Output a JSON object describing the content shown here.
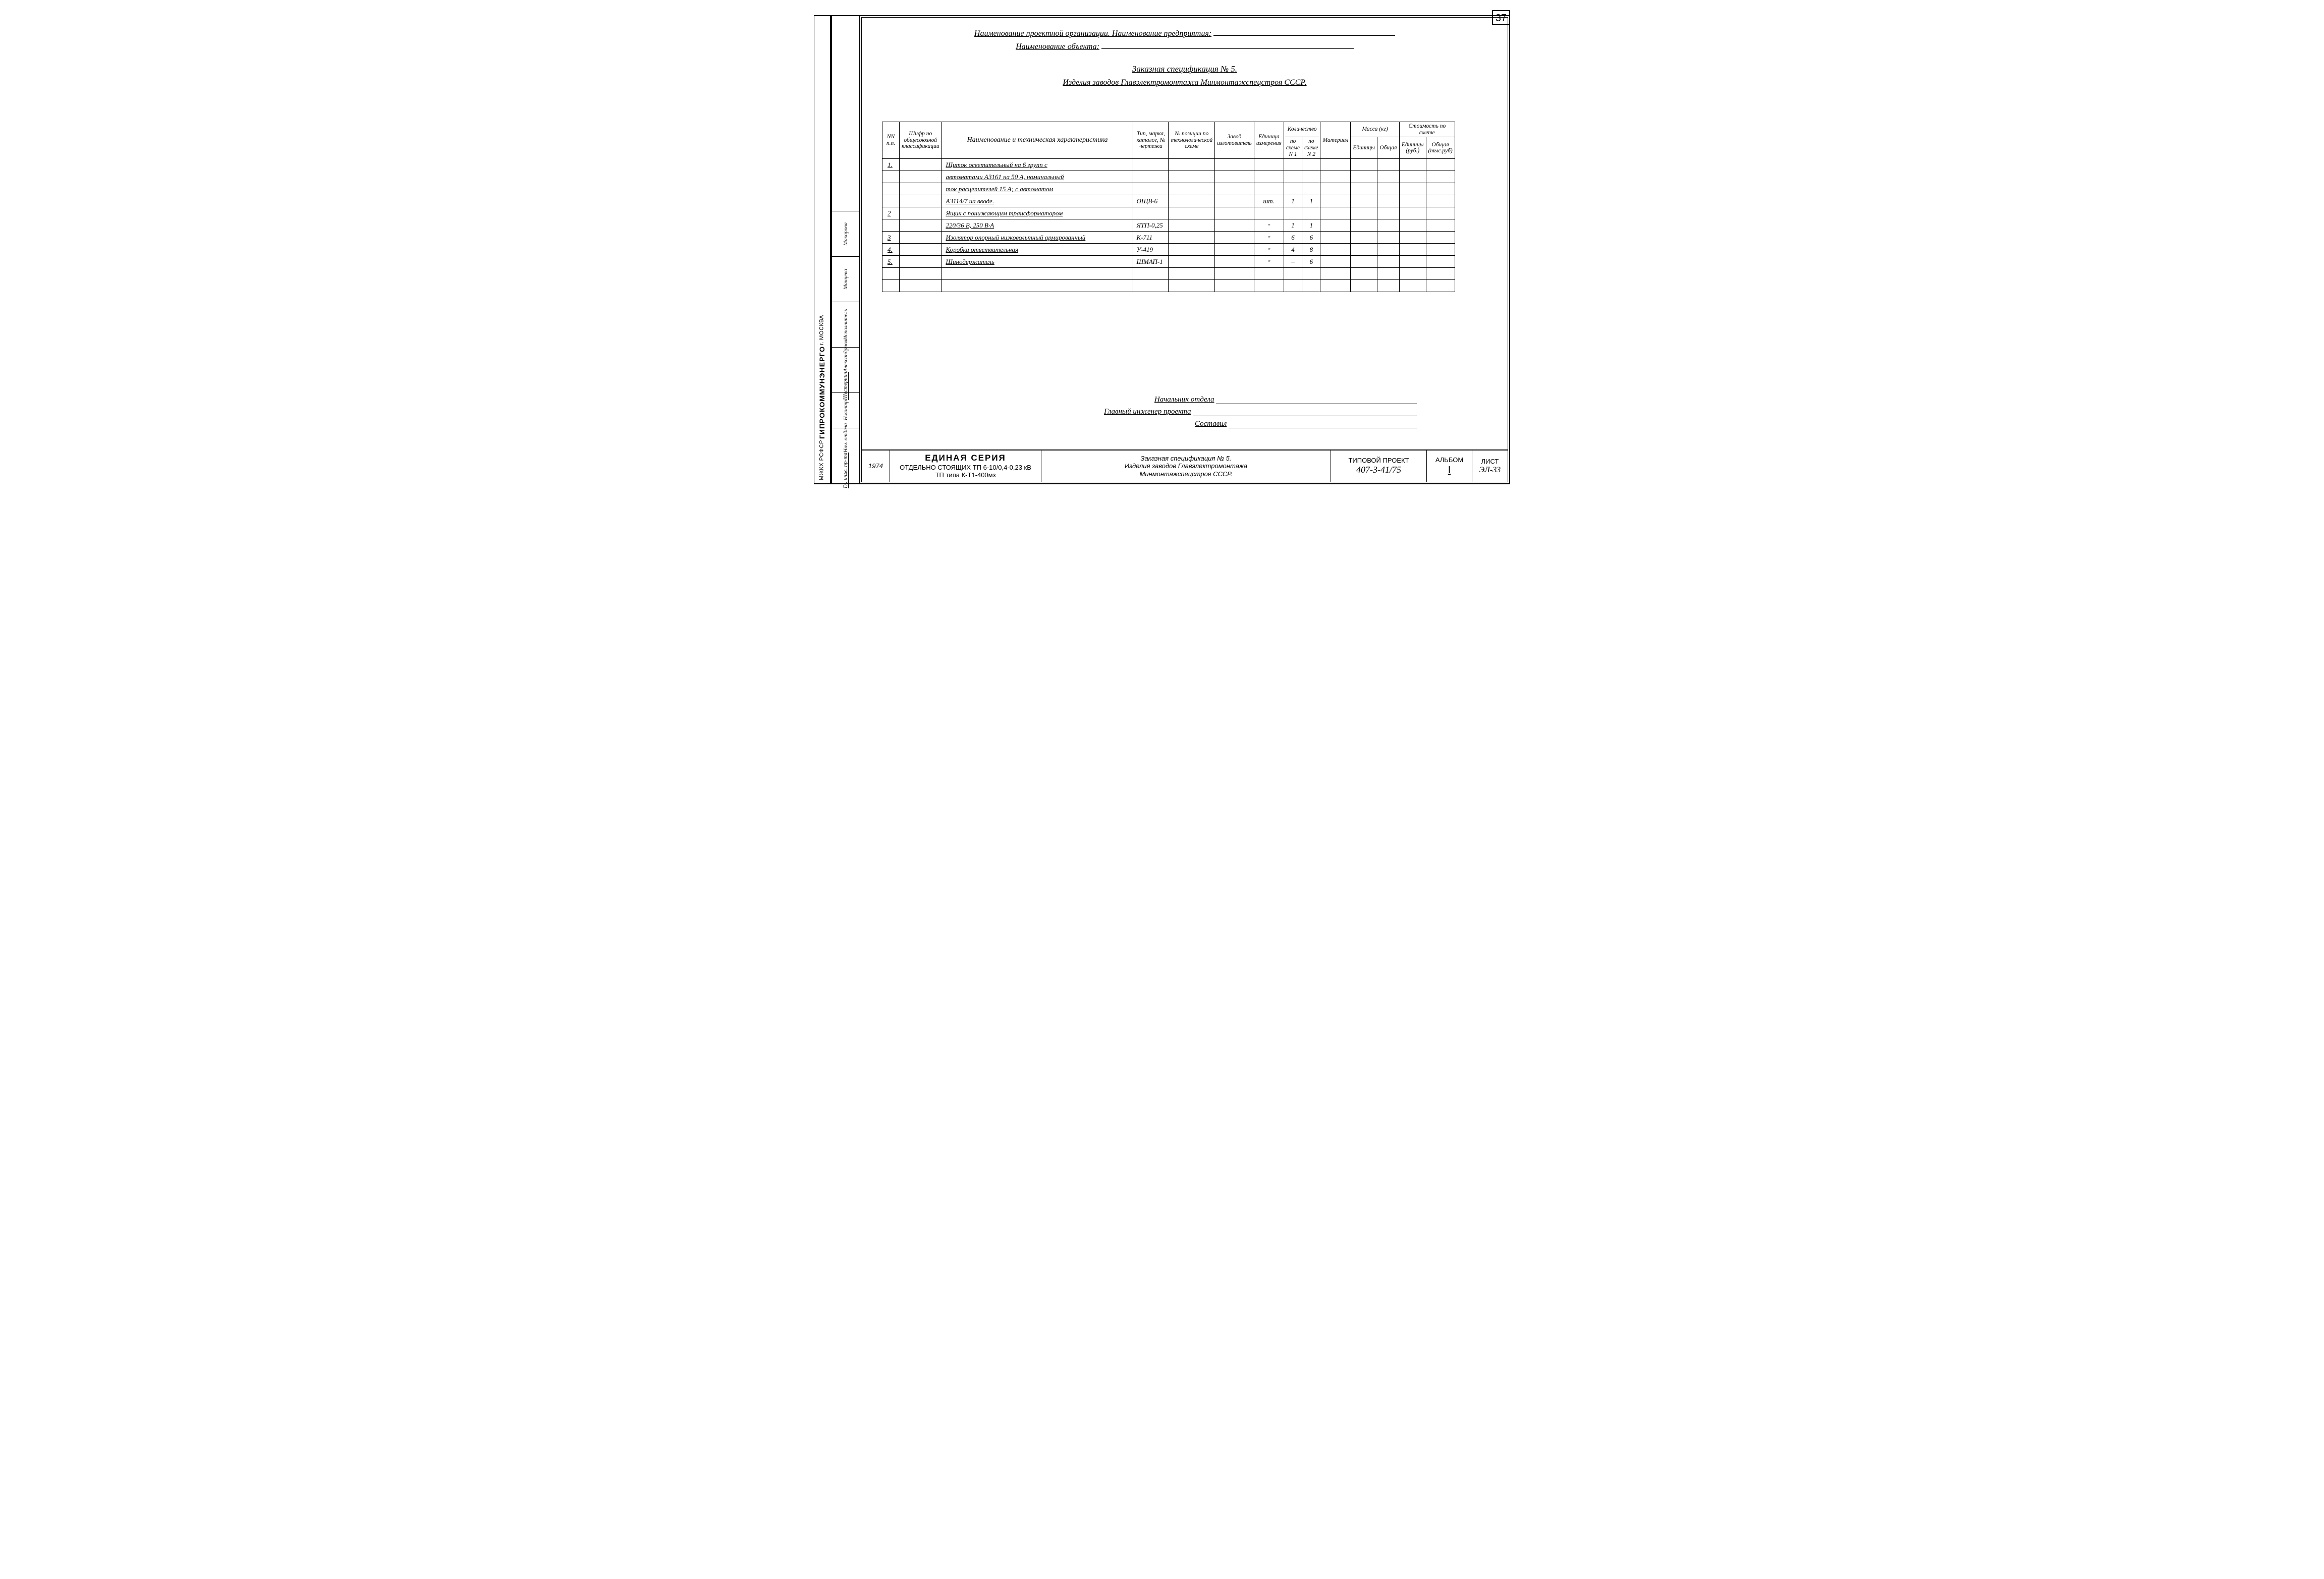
{
  "page_number": "37",
  "left_org": {
    "line1": "МЖКХ  РСФСР",
    "line2": "ГИПРОКОММУНЭНЕРГО",
    "line3": "г. МОСКВА"
  },
  "left_roles": [
    {
      "h": 110,
      "labels": [
        "Гл. инж. пр-та",
        "Нач. отдела"
      ]
    },
    {
      "h": 70,
      "labels": [
        "Н.контр"
      ]
    },
    {
      "h": 90,
      "labels": [
        "Шестернин",
        "Александрова"
      ]
    },
    {
      "h": 90,
      "labels": [
        "Исполнитель"
      ]
    },
    {
      "h": 90,
      "labels": [
        "Манцева"
      ]
    },
    {
      "h": 90,
      "labels": [
        "Макарова"
      ]
    }
  ],
  "header": {
    "line1": "Наименование проектной организации. Наименование предприятия:",
    "line2": "Наименование объекта:",
    "title": "Заказная спецификация № 5.",
    "subtitle": "Изделия заводов Главэлектромонтажа  Минмонтажспецстроя  СССР."
  },
  "columns": {
    "c1": "NN п.п.",
    "c2": "Шифр по общесоюзной классификации",
    "c3": "Наименование  и  техническая  характеристика",
    "c4": "Тип, марка, каталог, № чертежа",
    "c5": "№ позиции по технологической схеме",
    "c6": "Завод изготовитель",
    "c7": "Единица измерения",
    "c8": "Количество",
    "c8a": "по схеме N 1",
    "c8b": "по схеме N 2",
    "c9": "Материал",
    "c10": "Масса  (кг)",
    "c10a": "Единицы",
    "c10b": "Общая",
    "c11": "Стоимость по смете",
    "c11a": "Единицы (руб.)",
    "c11b": "Общая (тыс.руб)"
  },
  "rows": [
    {
      "n": "1.",
      "name": "Щиток осветительный  на  6 групп  с",
      "mark": "",
      "unit": "",
      "q1": "",
      "q2": ""
    },
    {
      "n": "",
      "name": "автоматами А3161 на 50 А, номинальный",
      "mark": "",
      "unit": "",
      "q1": "",
      "q2": ""
    },
    {
      "n": "",
      "name": "ток расцепителей 15 А; с автоматом",
      "mark": "",
      "unit": "",
      "q1": "",
      "q2": ""
    },
    {
      "n": "",
      "name": "А3114/7 на вводе.",
      "mark": "ОЩВ-6",
      "unit": "шт.",
      "q1": "1",
      "q2": "1"
    },
    {
      "n": "2",
      "name": "Ящик с понижающим трансформатором",
      "mark": "",
      "unit": "",
      "q1": "",
      "q2": ""
    },
    {
      "n": "",
      "name": "220/36 В, 250 В·А",
      "mark": "ЯТП-0,25",
      "unit": "״",
      "q1": "1",
      "q2": "1"
    },
    {
      "n": "3",
      "name": "Изолятор опорный низковольтный армированный",
      "mark": "К-711",
      "unit": "״",
      "q1": "6",
      "q2": "6"
    },
    {
      "n": "4.",
      "name": "Коробка ответвительная",
      "mark": "У-419",
      "unit": "״",
      "q1": "4",
      "q2": "8"
    },
    {
      "n": "5.",
      "name": "Шинодержатель",
      "mark": "ШМАП-1",
      "unit": "״",
      "q1": "–",
      "q2": "6"
    },
    {
      "n": "",
      "name": "",
      "mark": "",
      "unit": "",
      "q1": "",
      "q2": ""
    },
    {
      "n": "",
      "name": "",
      "mark": "",
      "unit": "",
      "q1": "",
      "q2": ""
    }
  ],
  "signatures": {
    "s1": "Начальник отдела",
    "s2": "Главный  инженер  проекта",
    "s3": "Составил"
  },
  "title_block": {
    "year": "1974",
    "series_l1": "ЕДИНАЯ  СЕРИЯ",
    "series_l2": "ОТДЕЛЬНО СТОЯЩИХ  ТП 6-10/0,4-0,23 кВ",
    "series_l3": "ТП типа К-Т1-400мз",
    "title_l1": "Заказная  спецификация  № 5.",
    "title_l2": "Изделия  заводов  Главэлектромонтажа",
    "title_l3": "Минмонтажспецстроя  СССР.",
    "proj_label": "ТИПОВОЙ ПРОЕКТ",
    "proj_code": "407-3-41/75",
    "album_label": "АЛЬБОМ",
    "album_value": "I",
    "sheet_label": "ЛИСТ",
    "sheet_value": "ЭЛ-33"
  },
  "col_widths": {
    "c1": 34,
    "c2": 50,
    "c3": 380,
    "c4": 70,
    "c5": 54,
    "c6": 54,
    "c7": 42,
    "c8a": 36,
    "c8b": 36,
    "c9": 50,
    "c10a": 50,
    "c10b": 44,
    "c11a": 50,
    "c11b": 50
  }
}
